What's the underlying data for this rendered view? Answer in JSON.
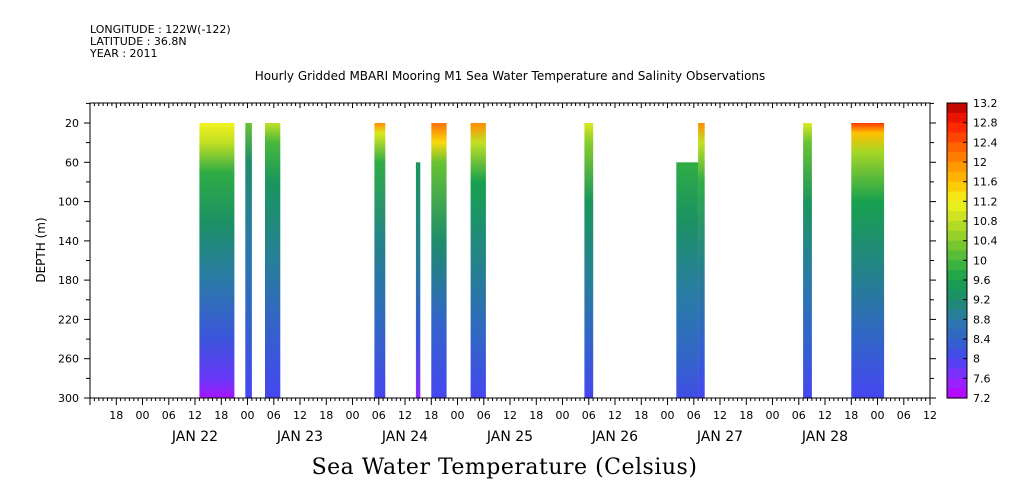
{
  "header": {
    "longitude": "LONGITUDE : 122W(-122)",
    "latitude": "LATITUDE : 36.8N",
    "year": "YEAR : 2011"
  },
  "chart_data": {
    "type": "heatmap",
    "title": "Hourly Gridded MBARI Mooring M1 Sea Water Temperature and Salinity Observations",
    "bottom_title": "Sea Water Temperature (Celsius)",
    "ylabel": "DEPTH (m)",
    "xlabel": "",
    "ylim": [
      300,
      0
    ],
    "y_ticks": [
      20,
      60,
      100,
      140,
      180,
      220,
      260,
      300
    ],
    "x_range_hours": [
      -12,
      180
    ],
    "hour_ticks": [
      "06",
      "12",
      "18",
      "00"
    ],
    "day_labels": [
      "JAN 22",
      "JAN 23",
      "JAN 24",
      "JAN 25",
      "JAN 26",
      "JAN 27",
      "JAN 28"
    ],
    "colorbar": {
      "min": 7.2,
      "max": 13.2,
      "step": 0.2,
      "labels": [
        "13.2",
        "12.8",
        "12.4",
        "12",
        "11.6",
        "11.2",
        "10.8",
        "10.4",
        "10",
        "9.6",
        "9.2",
        "8.8",
        "8.4",
        "8",
        "7.6",
        "7.2"
      ]
    },
    "data_columns": [
      {
        "start_hour": 13,
        "end_hour": 21,
        "top_depth": 20,
        "profile": [
          [
            20,
            11.2
          ],
          [
            40,
            10.8
          ],
          [
            70,
            9.8
          ],
          [
            120,
            9.3
          ],
          [
            180,
            8.8
          ],
          [
            240,
            8.2
          ],
          [
            280,
            7.8
          ],
          [
            300,
            7.4
          ]
        ]
      },
      {
        "start_hour": 23.5,
        "end_hour": 25,
        "top_depth": 20,
        "profile": [
          [
            20,
            10.2
          ],
          [
            60,
            9.2
          ],
          [
            140,
            8.8
          ],
          [
            220,
            8.4
          ],
          [
            300,
            8.0
          ]
        ]
      },
      {
        "start_hour": 28,
        "end_hour": 31.5,
        "top_depth": 20,
        "profile": [
          [
            20,
            10.8
          ],
          [
            40,
            10.0
          ],
          [
            80,
            9.4
          ],
          [
            160,
            8.9
          ],
          [
            240,
            8.3
          ],
          [
            300,
            8.0
          ]
        ]
      },
      {
        "start_hour": 53,
        "end_hour": 55.5,
        "top_depth": 20,
        "profile": [
          [
            20,
            12.0
          ],
          [
            30,
            11.0
          ],
          [
            60,
            9.8
          ],
          [
            140,
            9.0
          ],
          [
            220,
            8.5
          ],
          [
            300,
            8.0
          ]
        ]
      },
      {
        "start_hour": 62.5,
        "end_hour": 63.5,
        "top_depth": 60,
        "profile": [
          [
            60,
            9.4
          ],
          [
            160,
            8.9
          ],
          [
            240,
            8.2
          ],
          [
            300,
            7.6
          ]
        ]
      },
      {
        "start_hour": 66,
        "end_hour": 69.5,
        "top_depth": 20,
        "profile": [
          [
            20,
            12.2
          ],
          [
            40,
            11.4
          ],
          [
            60,
            10.2
          ],
          [
            140,
            9.2
          ],
          [
            220,
            8.4
          ],
          [
            300,
            8.0
          ]
        ]
      },
      {
        "start_hour": 75,
        "end_hour": 78.5,
        "top_depth": 20,
        "profile": [
          [
            20,
            12.0
          ],
          [
            40,
            10.8
          ],
          [
            80,
            9.6
          ],
          [
            160,
            9.0
          ],
          [
            240,
            8.4
          ],
          [
            300,
            8.0
          ]
        ]
      },
      {
        "start_hour": 101,
        "end_hour": 103,
        "top_depth": 20,
        "profile": [
          [
            20,
            11.0
          ],
          [
            40,
            10.4
          ],
          [
            100,
            9.4
          ],
          [
            180,
            8.9
          ],
          [
            240,
            8.4
          ],
          [
            300,
            8.0
          ]
        ]
      },
      {
        "start_hour": 122,
        "end_hour": 127,
        "top_depth": 60,
        "profile": [
          [
            60,
            9.8
          ],
          [
            120,
            9.3
          ],
          [
            200,
            8.8
          ],
          [
            260,
            8.4
          ],
          [
            300,
            8.1
          ]
        ]
      },
      {
        "start_hour": 127,
        "end_hour": 128.5,
        "top_depth": 20,
        "profile": [
          [
            20,
            12.0
          ],
          [
            40,
            10.8
          ],
          [
            80,
            9.8
          ],
          [
            160,
            9.0
          ],
          [
            240,
            8.4
          ],
          [
            300,
            8.0
          ]
        ]
      },
      {
        "start_hour": 151,
        "end_hour": 153,
        "top_depth": 20,
        "profile": [
          [
            20,
            11.0
          ],
          [
            40,
            10.2
          ],
          [
            100,
            9.4
          ],
          [
            180,
            8.8
          ],
          [
            240,
            8.4
          ],
          [
            300,
            8.0
          ]
        ]
      },
      {
        "start_hour": 162,
        "end_hour": 169.5,
        "top_depth": 20,
        "profile": [
          [
            20,
            12.6
          ],
          [
            30,
            11.6
          ],
          [
            50,
            10.6
          ],
          [
            100,
            9.6
          ],
          [
            170,
            9.0
          ],
          [
            240,
            8.4
          ],
          [
            300,
            8.0
          ]
        ]
      }
    ],
    "grid": false,
    "legend_placement": "right"
  }
}
